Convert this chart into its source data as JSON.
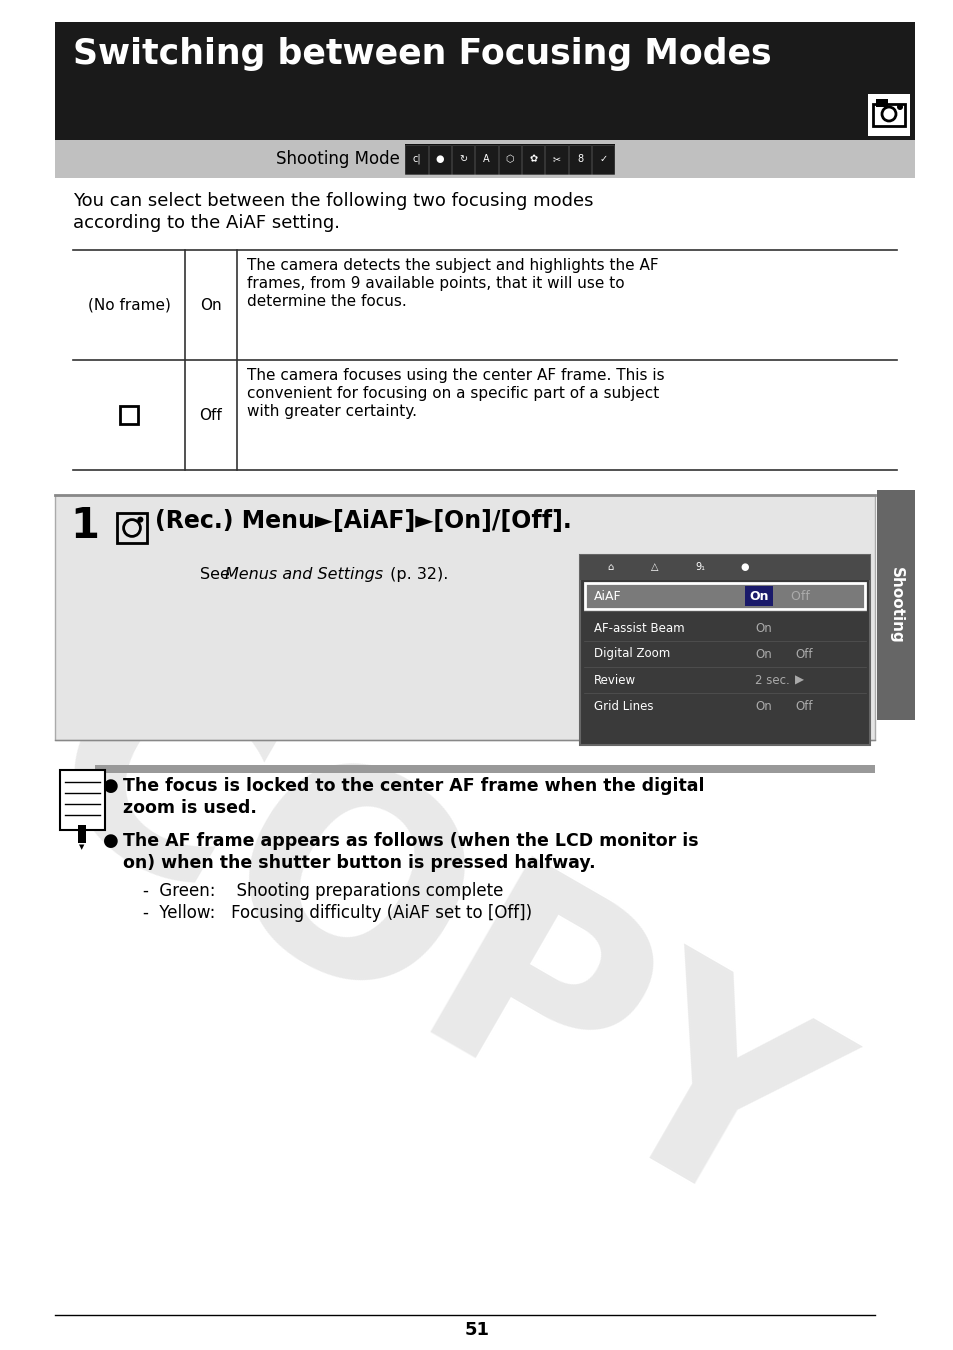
{
  "title": "Switching between Focusing Modes",
  "header_bg": "#1a1a1a",
  "header_text_color": "#ffffff",
  "body_bg": "#ffffff",
  "intro_text_line1": "You can select between the following two focusing modes",
  "intro_text_line2": "according to the AiAF setting.",
  "table_row1_col1": "(No frame)",
  "table_row1_col2": "On",
  "table_row1_col3_line1": "The camera detects the subject and highlights the AF",
  "table_row1_col3_line2": "frames, from 9 available points, that it will use to",
  "table_row1_col3_line3": "determine the focus.",
  "table_row2_col2": "Off",
  "table_row2_col3_line1": "The camera focuses using the center AF frame. This is",
  "table_row2_col3_line2": "convenient for focusing on a specific part of a subject",
  "table_row2_col3_line3": "with greater certainty.",
  "step_number": "1",
  "step_text": "(Rec.) Menu►[AiAF]►[On]/[Off].",
  "see_text_normal1": "See ",
  "see_text_italic": "Menus and Settings",
  "see_text_normal2": " (p. 32).",
  "menu_items": [
    {
      "label": "AiAF",
      "value_on": "On",
      "value_off": " Off",
      "highlight": true
    },
    {
      "label": "AF-assist Beam",
      "value": "On",
      "highlight": false
    },
    {
      "label": "Digital Zoom",
      "value": "On Off",
      "highlight": false
    },
    {
      "label": "Review",
      "value": "2 sec.",
      "arrow": true,
      "highlight": false
    },
    {
      "label": "Grid Lines",
      "value": "On Off",
      "highlight": false
    }
  ],
  "sidebar_label": "Shooting",
  "sidebar_bg": "#666666",
  "note_bar_bg": "#999999",
  "note_bullet1_line1": "The focus is locked to the center AF frame when the digital",
  "note_bullet1_line2": "zoom is used.",
  "note_bullet2_line1": "The AF frame appears as follows (when the LCD monitor is",
  "note_bullet2_line2": "on) when the shutter button is pressed halfway.",
  "note_bullet2_line3": "-  Green:    Shooting preparations complete",
  "note_bullet2_line4": "-  Yellow:   Focusing difficulty (AiAF set to [Off])",
  "page_number": "51",
  "watermark_text": "COPY",
  "shooting_mode_label": "Shooting Mode"
}
